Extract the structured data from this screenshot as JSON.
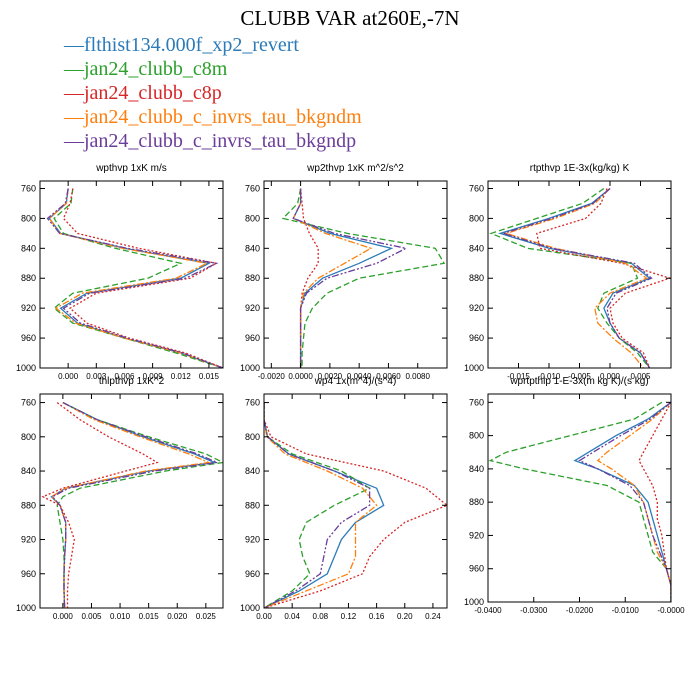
{
  "title": "CLUBB VAR at260E,-7N",
  "legend": [
    {
      "label": "flthist134.000f_xp2_revert",
      "color": "#2b7bb9",
      "dash": ""
    },
    {
      "label": "jan24_clubb_c8m",
      "color": "#2ca02c",
      "dash": "6,3"
    },
    {
      "label": "jan24_clubb_c8p",
      "color": "#d62728",
      "dash": "2,2"
    },
    {
      "label": "jan24_clubb_c_invrs_tau_bkgndm",
      "color": "#ff7f0e",
      "dash": "7,2,2,2"
    },
    {
      "label": "jan24_clubb_c_invrs_tau_bkgndp",
      "color": "#6a3d9a",
      "dash": "7,2,2,2,2,2"
    }
  ],
  "chart_data": [
    {
      "type": "line",
      "title": "wpthvp  1xK m/s",
      "ylim": [
        1000,
        750
      ],
      "yticks": [
        760,
        800,
        840,
        880,
        920,
        960,
        1000
      ],
      "xlim": [
        -0.003,
        0.0165
      ],
      "xticks": [
        0.0,
        0.003,
        0.006,
        0.009,
        0.012,
        0.015
      ],
      "xticklabels": [
        "0.000",
        "0.003",
        "0.006",
        "0.009",
        "0.012",
        "0.015"
      ],
      "y": [
        760,
        780,
        800,
        820,
        840,
        860,
        880,
        900,
        920,
        940,
        960,
        980,
        1000
      ],
      "series": [
        {
          "x": [
            0.0,
            -0.0002,
            -0.002,
            -0.0008,
            0.006,
            0.015,
            0.012,
            0.002,
            -0.0008,
            0.001,
            0.006,
            0.012,
            0.0165
          ]
        },
        {
          "x": [
            0.0005,
            0.0003,
            -0.0015,
            -0.0005,
            0.005,
            0.012,
            0.0085,
            0.0005,
            -0.0015,
            0.0005,
            0.006,
            0.0115,
            0.0165
          ]
        },
        {
          "x": [
            0.0005,
            0.0002,
            -0.0005,
            0.001,
            0.0075,
            0.0158,
            0.013,
            0.003,
            0.0002,
            0.002,
            0.0065,
            0.0125,
            0.0165
          ]
        },
        {
          "x": [
            0.0,
            -0.0002,
            -0.002,
            -0.0009,
            0.0058,
            0.0148,
            0.0115,
            0.0015,
            -0.0013,
            0.0008,
            0.006,
            0.012,
            0.0165
          ]
        },
        {
          "x": [
            0.0,
            -0.0003,
            -0.0022,
            -0.0009,
            0.0063,
            0.0158,
            0.0125,
            0.0023,
            -0.0005,
            0.0013,
            0.0063,
            0.0122,
            0.0165
          ]
        }
      ]
    },
    {
      "type": "line",
      "title": "wp2thvp  1xK m^2/s^2",
      "ylim": [
        1000,
        750
      ],
      "yticks": [
        760,
        800,
        840,
        880,
        920,
        960,
        1000
      ],
      "xlim": [
        -0.0025,
        0.01
      ],
      "xticks": [
        -0.002,
        0.0,
        0.002,
        0.004,
        0.006,
        0.008
      ],
      "xticklabels": [
        "-0.0020",
        "0.0000",
        "0.0020",
        "0.0040",
        "0.0060",
        "0.0080"
      ],
      "y": [
        760,
        780,
        800,
        820,
        840,
        860,
        880,
        900,
        920,
        940,
        960,
        980,
        1000
      ],
      "series": [
        {
          "x": [
            0.0,
            0.0,
            -0.0005,
            0.002,
            0.0062,
            0.004,
            0.0015,
            0.0003,
            0.0,
            0.0,
            0.0,
            0.0,
            0.0
          ]
        },
        {
          "x": [
            0.0,
            -0.0002,
            -0.0012,
            0.0032,
            0.0092,
            0.0098,
            0.004,
            0.0018,
            0.0008,
            0.0003,
            0.0002,
            0.0001,
            0.0001
          ]
        },
        {
          "x": [
            0.0,
            0.0001,
            0.0002,
            0.0006,
            0.0012,
            0.0012,
            0.0005,
            0.0001,
            0.0,
            0.0,
            0.0,
            0.0,
            0.0
          ]
        },
        {
          "x": [
            0.0,
            0.0,
            -0.0005,
            0.0017,
            0.0048,
            0.003,
            0.0012,
            0.0002,
            0.0,
            0.0,
            0.0,
            0.0,
            0.0
          ]
        },
        {
          "x": [
            0.0,
            0.0,
            -0.0005,
            0.0023,
            0.0072,
            0.0052,
            0.0018,
            0.0004,
            0.0,
            0.0,
            0.0,
            0.0,
            0.0
          ]
        }
      ]
    },
    {
      "type": "line",
      "title": "rtpthvp  1E-3x(kg/kg) K",
      "ylim": [
        1000,
        750
      ],
      "yticks": [
        760,
        800,
        840,
        880,
        920,
        960,
        1000
      ],
      "xlim": [
        -0.02,
        0.01
      ],
      "xticks": [
        -0.015,
        -0.01,
        -0.005,
        0.0,
        0.005
      ],
      "xticklabels": [
        "-0.015",
        "-0.010",
        "-0.005",
        "0.000",
        "0.005"
      ],
      "y": [
        760,
        780,
        800,
        820,
        840,
        860,
        880,
        900,
        920,
        940,
        960,
        980,
        1000
      ],
      "series": [
        {
          "x": [
            0.0,
            -0.003,
            -0.01,
            -0.018,
            -0.01,
            0.0035,
            0.0065,
            0.0005,
            -0.001,
            0.0,
            0.0015,
            0.005,
            0.0065
          ]
        },
        {
          "x": [
            -0.001,
            -0.0045,
            -0.012,
            -0.0195,
            -0.0135,
            0.0035,
            0.0045,
            -0.001,
            -0.002,
            -0.0005,
            0.0015,
            0.0045,
            0.0065
          ]
        },
        {
          "x": [
            -0.0005,
            -0.0015,
            -0.004,
            -0.012,
            -0.0115,
            0.002,
            0.0098,
            0.0025,
            0.0,
            0.0005,
            0.002,
            0.0055,
            0.0065
          ]
        },
        {
          "x": [
            0.0,
            -0.0025,
            -0.009,
            -0.017,
            -0.009,
            0.0025,
            0.006,
            0.0,
            -0.0025,
            -0.002,
            0.0005,
            0.0035,
            0.0055
          ]
        },
        {
          "x": [
            0.0,
            -0.0028,
            -0.0095,
            -0.0175,
            -0.0095,
            0.004,
            0.0068,
            0.001,
            -0.0005,
            0.0,
            0.0015,
            0.005,
            0.0065
          ]
        }
      ]
    },
    {
      "type": "line",
      "title": "thlpthvp  1xK^2",
      "ylim": [
        1000,
        750
      ],
      "yticks": [
        760,
        800,
        840,
        880,
        920,
        960,
        1000
      ],
      "xlim": [
        -0.004,
        0.028
      ],
      "xticks": [
        0.0,
        0.005,
        0.01,
        0.015,
        0.02,
        0.025
      ],
      "xticklabels": [
        "0.000",
        "0.005",
        "0.010",
        "0.015",
        "0.020",
        "0.025"
      ],
      "y": [
        760,
        780,
        800,
        820,
        830,
        840,
        860,
        870,
        880,
        900,
        920,
        940,
        960,
        980,
        1000
      ],
      "series": [
        {
          "x": [
            0.0,
            0.006,
            0.014,
            0.023,
            0.0265,
            0.015,
            0.0005,
            -0.002,
            -0.0005,
            0.0005,
            0.0005,
            0.0003,
            0.0002,
            0.0002,
            0.0003
          ]
        },
        {
          "x": [
            0.0,
            0.006,
            0.015,
            0.025,
            0.028,
            0.018,
            0.003,
            0.0,
            -0.001,
            -0.0005,
            0.0,
            0.0002,
            0.0002,
            0.0002,
            0.0003
          ]
        },
        {
          "x": [
            -0.001,
            0.003,
            0.008,
            0.014,
            0.0165,
            0.011,
            0.0,
            -0.0035,
            -0.0005,
            0.001,
            0.002,
            0.0015,
            0.001,
            0.0008,
            0.0008
          ]
        },
        {
          "x": [
            0.0,
            0.0055,
            0.0135,
            0.022,
            0.0255,
            0.0145,
            0.0005,
            -0.002,
            -0.0005,
            0.0005,
            0.0005,
            0.0003,
            0.0002,
            0.0002,
            0.0003
          ]
        },
        {
          "x": [
            0.0,
            0.006,
            0.0145,
            0.0235,
            0.027,
            0.016,
            0.001,
            -0.0018,
            -0.0005,
            0.0005,
            0.0005,
            0.0003,
            0.0002,
            0.0002,
            0.0003
          ]
        }
      ]
    },
    {
      "type": "line",
      "title": "wp4  1x(m^4)/(s^4)",
      "ylim": [
        1000,
        750
      ],
      "yticks": [
        760,
        800,
        840,
        880,
        920,
        960,
        1000
      ],
      "xlim": [
        0.0,
        0.26
      ],
      "xticks": [
        0.0,
        0.04,
        0.08,
        0.12,
        0.16,
        0.2,
        0.24
      ],
      "xticklabels": [
        "0.00",
        "0.04",
        "0.08",
        "0.12",
        "0.16",
        "0.20",
        "0.24"
      ],
      "y": [
        760,
        780,
        800,
        820,
        840,
        860,
        880,
        900,
        920,
        940,
        960,
        980,
        1000
      ],
      "series": [
        {
          "x": [
            0.0,
            0.0,
            0.005,
            0.035,
            0.1,
            0.16,
            0.17,
            0.13,
            0.11,
            0.1,
            0.09,
            0.05,
            0.0
          ]
        },
        {
          "x": [
            0.0,
            0.0,
            0.005,
            0.04,
            0.11,
            0.15,
            0.1,
            0.06,
            0.05,
            0.055,
            0.065,
            0.04,
            0.0
          ]
        },
        {
          "x": [
            0.0,
            0.0,
            0.01,
            0.06,
            0.17,
            0.23,
            0.26,
            0.2,
            0.17,
            0.15,
            0.14,
            0.08,
            0.0
          ]
        },
        {
          "x": [
            0.0,
            0.0,
            0.004,
            0.03,
            0.09,
            0.14,
            0.16,
            0.13,
            0.13,
            0.13,
            0.12,
            0.06,
            0.0
          ]
        },
        {
          "x": [
            0.0,
            0.0,
            0.005,
            0.035,
            0.1,
            0.15,
            0.15,
            0.11,
            0.09,
            0.085,
            0.08,
            0.045,
            0.0
          ]
        }
      ]
    },
    {
      "type": "line",
      "title": "wprtpthlp  1-E-3x(m kg K)/(s kg)",
      "ylim": [
        1000,
        750
      ],
      "yticks": [
        760,
        800,
        840,
        880,
        920,
        960,
        1000
      ],
      "xlim": [
        -0.04,
        0.0
      ],
      "xticks": [
        -0.04,
        -0.03,
        -0.02,
        -0.01,
        0.0
      ],
      "xticklabels": [
        "-0.0400",
        "-0.0300",
        "-0.0200",
        "-0.0100",
        "-0.0000"
      ],
      "y": [
        760,
        780,
        800,
        820,
        830,
        840,
        860,
        880,
        900,
        920,
        940,
        960,
        980,
        1000
      ],
      "series": [
        {
          "x": [
            0.0,
            -0.005,
            -0.012,
            -0.018,
            -0.021,
            -0.016,
            -0.008,
            -0.005,
            -0.004,
            -0.003,
            -0.002,
            -0.001,
            0.0,
            0.0
          ]
        },
        {
          "x": [
            -0.002,
            -0.008,
            -0.022,
            -0.036,
            -0.0395,
            -0.032,
            -0.014,
            -0.007,
            -0.006,
            -0.005,
            -0.004,
            -0.001,
            0.0,
            0.0
          ]
        },
        {
          "x": [
            0.0,
            -0.002,
            -0.004,
            -0.006,
            -0.007,
            -0.006,
            -0.004,
            -0.003,
            -0.003,
            -0.002,
            -0.0015,
            -0.001,
            0.0,
            0.0
          ]
        },
        {
          "x": [
            0.0,
            -0.004,
            -0.009,
            -0.014,
            -0.016,
            -0.013,
            -0.008,
            -0.006,
            -0.005,
            -0.004,
            -0.003,
            -0.001,
            0.0,
            0.0
          ]
        },
        {
          "x": [
            0.0,
            -0.0045,
            -0.011,
            -0.017,
            -0.02,
            -0.016,
            -0.009,
            -0.006,
            -0.005,
            -0.004,
            -0.0025,
            -0.001,
            0.0,
            0.0
          ]
        }
      ]
    }
  ]
}
